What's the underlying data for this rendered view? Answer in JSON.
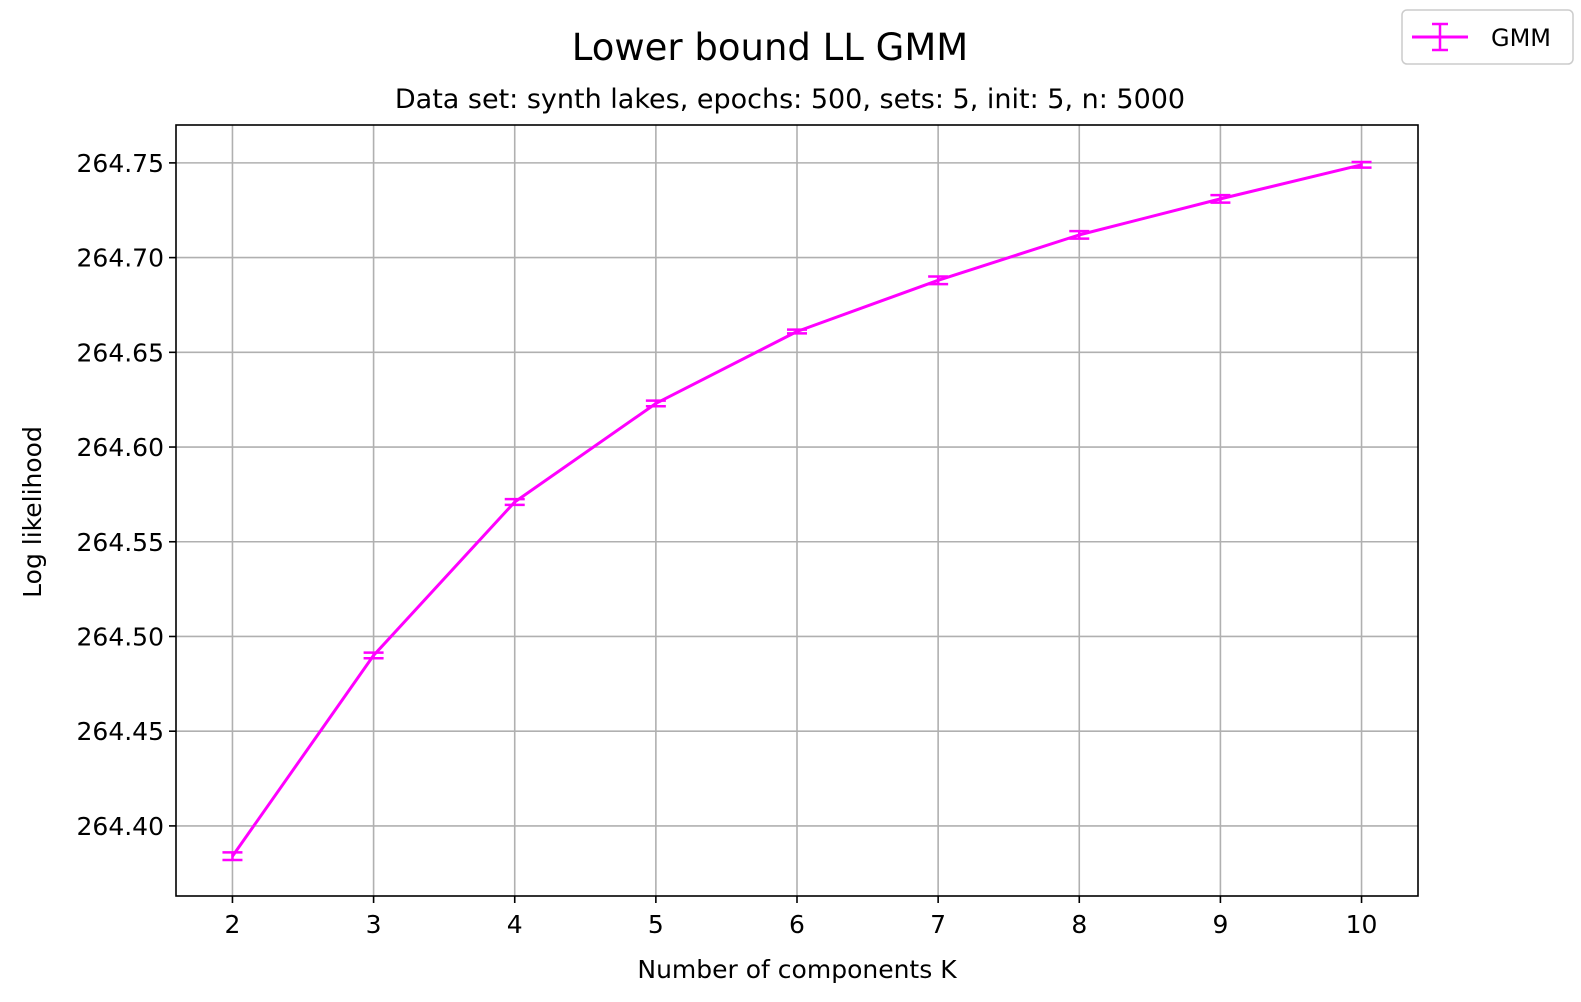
{
  "chart_data": {
    "type": "line",
    "title": "Lower bound LL GMM",
    "subtitle": "Data set:  synth lakes, epochs: 500, sets: 5, init: 5, n: 5000",
    "xlabel": "Number of components K",
    "ylabel": "Log likelihood",
    "x": [
      2,
      3,
      4,
      5,
      6,
      7,
      8,
      9,
      10
    ],
    "x_ticks": [
      "2",
      "3",
      "4",
      "5",
      "6",
      "7",
      "8",
      "9",
      "10"
    ],
    "y_ticks": [
      "264.40",
      "264.45",
      "264.50",
      "264.55",
      "264.60",
      "264.65",
      "264.70",
      "264.75"
    ],
    "xlim": [
      1.6,
      10.4
    ],
    "ylim": [
      264.363,
      264.77
    ],
    "grid": true,
    "legend_position": "top-right",
    "series": [
      {
        "name": "GMM",
        "color": "#ff00ff",
        "values": [
          264.384,
          264.49,
          264.571,
          264.623,
          264.661,
          264.688,
          264.712,
          264.731,
          264.749
        ],
        "errors": [
          0.002,
          0.0015,
          0.0015,
          0.0015,
          0.001,
          0.002,
          0.002,
          0.002,
          0.0015
        ]
      }
    ]
  }
}
